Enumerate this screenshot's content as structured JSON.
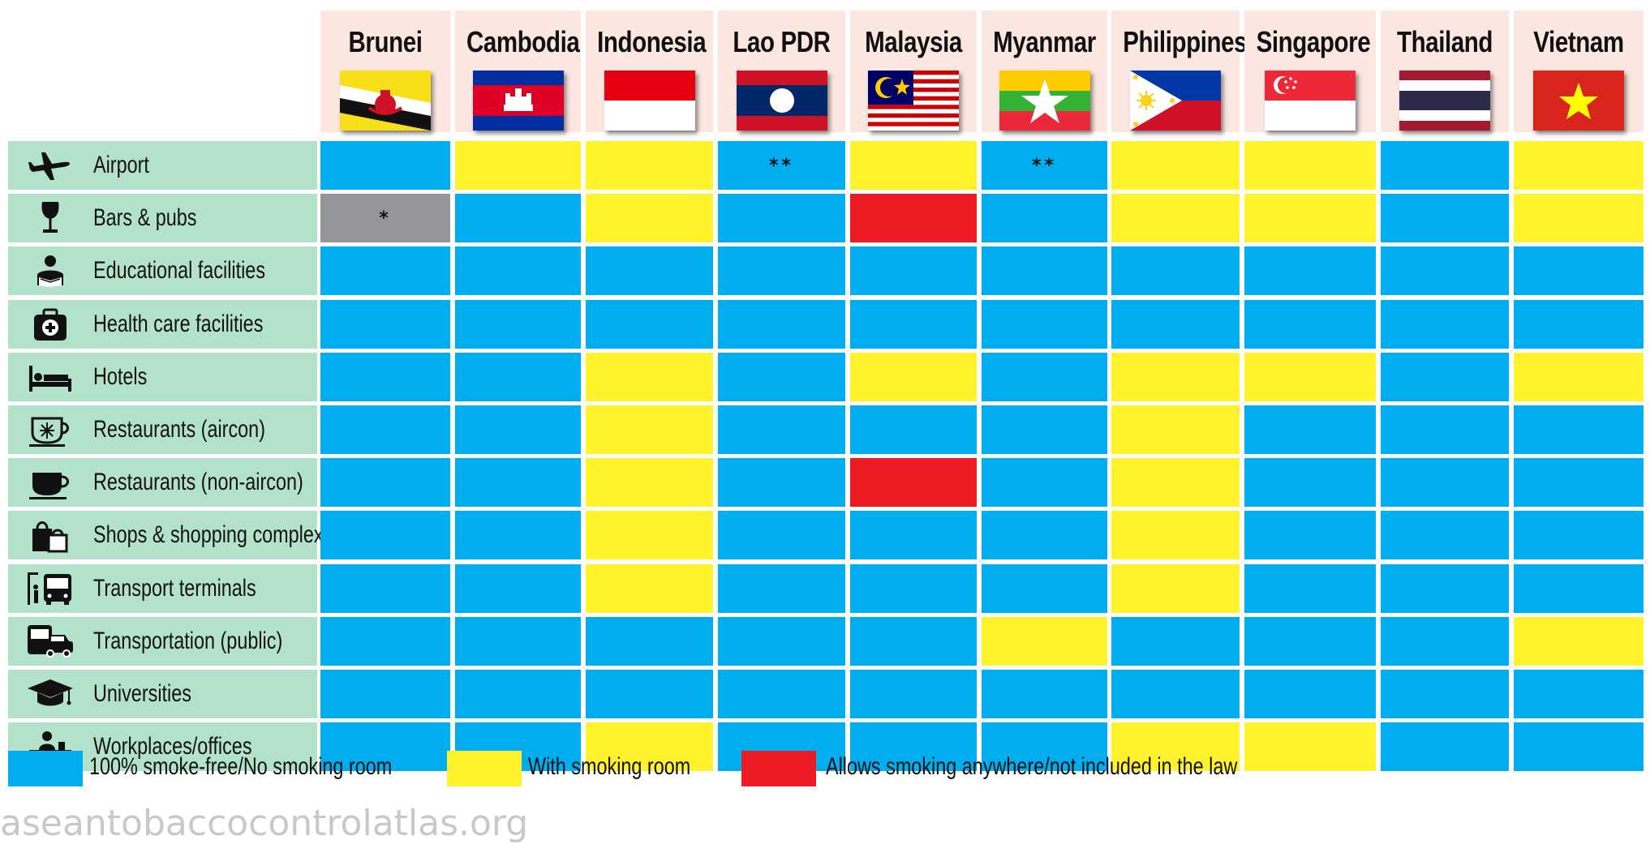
{
  "chart_data": {
    "type": "table",
    "columns": [
      "Brunei",
      "Cambodia",
      "Indonesia",
      "Lao PDR",
      "Malaysia",
      "Myanmar",
      "Philippines",
      "Singapore",
      "Thailand",
      "Vietnam"
    ],
    "rows": [
      {
        "label": "Airport",
        "icon": "airplane-icon",
        "values": [
          "S",
          "Y",
          "Y",
          "S",
          "Y",
          "S",
          "Y",
          "Y",
          "S",
          "Y"
        ],
        "marks": [
          "",
          "",
          "",
          "**",
          "",
          "**",
          "",
          "",
          "",
          ""
        ]
      },
      {
        "label": "Bars & pubs",
        "icon": "wine-glass-icon",
        "values": [
          "G",
          "S",
          "Y",
          "S",
          "R",
          "S",
          "Y",
          "Y",
          "S",
          "Y"
        ],
        "marks": [
          "*",
          "",
          "",
          "",
          "",
          "",
          "",
          "",
          "",
          ""
        ]
      },
      {
        "label": "Educational facilities",
        "icon": "student-reading-icon",
        "values": [
          "S",
          "S",
          "S",
          "S",
          "S",
          "S",
          "S",
          "S",
          "S",
          "S"
        ],
        "marks": [
          "",
          "",
          "",
          "",
          "",
          "",
          "",
          "",
          "",
          ""
        ]
      },
      {
        "label": "Health care facilities",
        "icon": "first-aid-kit-icon",
        "values": [
          "S",
          "S",
          "S",
          "S",
          "S",
          "S",
          "S",
          "S",
          "S",
          "S"
        ],
        "marks": [
          "",
          "",
          "",
          "",
          "",
          "",
          "",
          "",
          "",
          ""
        ]
      },
      {
        "label": "Hotels",
        "icon": "bed-icon",
        "values": [
          "S",
          "S",
          "Y",
          "S",
          "Y",
          "S",
          "Y",
          "Y",
          "S",
          "Y"
        ],
        "marks": [
          "",
          "",
          "",
          "",
          "",
          "",
          "",
          "",
          "",
          ""
        ]
      },
      {
        "label": "Restaurants (aircon)",
        "icon": "cup-snowflake-icon",
        "values": [
          "S",
          "S",
          "Y",
          "S",
          "S",
          "S",
          "Y",
          "S",
          "S",
          "S"
        ],
        "marks": [
          "",
          "",
          "",
          "",
          "",
          "",
          "",
          "",
          "",
          ""
        ]
      },
      {
        "label": "Restaurants (non-aircon)",
        "icon": "coffee-cup-icon",
        "values": [
          "S",
          "S",
          "Y",
          "S",
          "R",
          "S",
          "Y",
          "S",
          "S",
          "S"
        ],
        "marks": [
          "",
          "",
          "",
          "",
          "",
          "",
          "",
          "",
          "",
          ""
        ]
      },
      {
        "label": "Shops & shopping complex",
        "icon": "shopping-bags-icon",
        "values": [
          "S",
          "S",
          "Y",
          "S",
          "S",
          "S",
          "Y",
          "S",
          "S",
          "S"
        ],
        "marks": [
          "",
          "",
          "",
          "",
          "",
          "",
          "",
          "",
          "",
          ""
        ]
      },
      {
        "label": "Transport terminals",
        "icon": "bus-stop-icon",
        "values": [
          "S",
          "S",
          "Y",
          "S",
          "S",
          "S",
          "Y",
          "S",
          "S",
          "S"
        ],
        "marks": [
          "",
          "",
          "",
          "",
          "",
          "",
          "",
          "",
          "",
          ""
        ]
      },
      {
        "label": "Transportation (public)",
        "icon": "bus-car-icon",
        "values": [
          "S",
          "S",
          "S",
          "S",
          "S",
          "Y",
          "S",
          "S",
          "S",
          "Y"
        ],
        "marks": [
          "",
          "",
          "",
          "",
          "",
          "",
          "",
          "",
          "",
          ""
        ]
      },
      {
        "label": "Universities",
        "icon": "graduation-cap-icon",
        "values": [
          "S",
          "S",
          "S",
          "S",
          "S",
          "S",
          "S",
          "S",
          "S",
          "S"
        ],
        "marks": [
          "",
          "",
          "",
          "",
          "",
          "",
          "",
          "",
          "",
          ""
        ]
      },
      {
        "label": "Workplaces/offices",
        "icon": "office-desk-icon",
        "values": [
          "S",
          "S",
          "Y",
          "S",
          "S",
          "S",
          "Y",
          "Y",
          "S",
          "S"
        ],
        "marks": [
          "",
          "",
          "",
          "",
          "",
          "",
          "",
          "",
          "",
          ""
        ]
      }
    ],
    "categories": {
      "S": {
        "label": "100% smoke-free/No smoking room",
        "color": "#00aeef"
      },
      "Y": {
        "label": "With smoking room",
        "color": "#fff22d"
      },
      "R": {
        "label": "Allows smoking anywhere/not included in the law",
        "color": "#ed1c24"
      },
      "G": {
        "color": "#939598"
      }
    },
    "legend": [
      "S",
      "Y",
      "R"
    ]
  },
  "colors": {
    "header_bg": "#fbe6e0",
    "row_label_bg": "#b3e2cb"
  },
  "watermark": "aseantobaccocontrolatlas.org"
}
